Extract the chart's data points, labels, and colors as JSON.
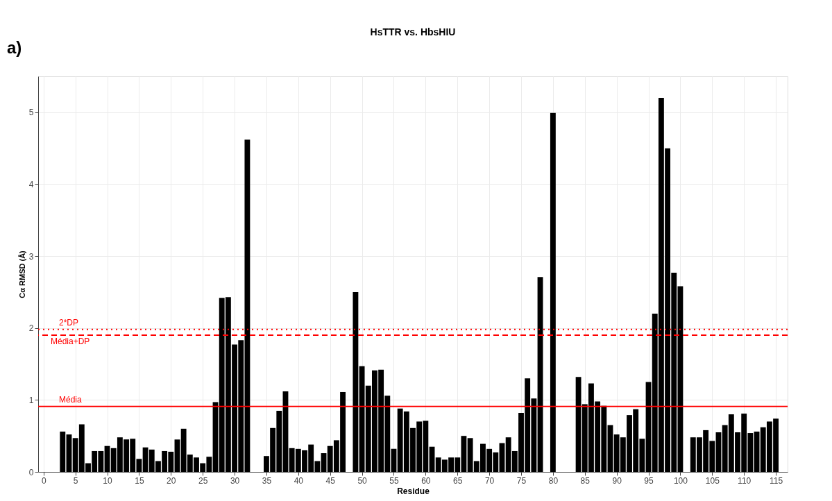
{
  "chart_data": {
    "type": "bar",
    "title": "HsTTR vs. HbsHIU",
    "xlabel": "Residue",
    "ylabel": "Cα RMSD (Å)",
    "annotations": [
      "a)"
    ],
    "x": [
      3,
      4,
      5,
      6,
      7,
      8,
      9,
      10,
      11,
      12,
      13,
      14,
      15,
      16,
      17,
      18,
      19,
      20,
      21,
      22,
      23,
      24,
      25,
      26,
      27,
      28,
      29,
      30,
      31,
      32,
      33,
      34,
      35,
      36,
      37,
      38,
      39,
      40,
      41,
      42,
      43,
      44,
      45,
      46,
      47,
      48,
      49,
      50,
      51,
      52,
      53,
      54,
      55,
      56,
      57,
      58,
      59,
      60,
      61,
      62,
      63,
      64,
      65,
      66,
      67,
      68,
      69,
      70,
      71,
      72,
      73,
      74,
      75,
      76,
      77,
      78,
      79,
      80,
      81,
      82,
      83,
      84,
      85,
      86,
      87,
      88,
      89,
      90,
      91,
      92,
      93,
      94,
      95,
      96,
      97,
      98,
      99,
      100,
      101,
      102,
      103,
      104,
      105,
      106,
      107,
      108,
      109,
      110,
      111,
      112,
      113,
      114,
      115
    ],
    "values": [
      0.56,
      0.52,
      0.47,
      0.66,
      0.12,
      0.29,
      0.29,
      0.36,
      0.33,
      0.48,
      0.45,
      0.46,
      0.18,
      0.34,
      0.31,
      0.15,
      0.29,
      0.28,
      0.45,
      0.6,
      0.24,
      0.2,
      0.12,
      0.21,
      0.97,
      2.42,
      2.43,
      1.77,
      1.83,
      4.62,
      null,
      null,
      0.22,
      0.61,
      0.85,
      1.12,
      0.33,
      0.32,
      0.3,
      0.38,
      0.15,
      0.26,
      0.36,
      0.44,
      1.11,
      null,
      2.5,
      1.47,
      1.2,
      1.41,
      1.42,
      1.06,
      0.32,
      0.88,
      0.84,
      0.61,
      0.7,
      0.71,
      0.35,
      0.2,
      0.17,
      0.2,
      0.2,
      0.5,
      0.47,
      0.15,
      0.39,
      0.32,
      0.27,
      0.4,
      0.48,
      0.29,
      0.82,
      1.3,
      1.02,
      2.71,
      null,
      4.99,
      null,
      null,
      null,
      1.32,
      0.94,
      1.23,
      0.98,
      0.92,
      0.65,
      0.52,
      0.48,
      0.79,
      0.87,
      0.46,
      1.25,
      2.2,
      5.2,
      4.5,
      2.77,
      2.58,
      null,
      0.48,
      0.48,
      0.58,
      0.43,
      0.55,
      0.65,
      0.8,
      0.55,
      0.81,
      0.54,
      0.56,
      0.62,
      0.7,
      0.74
    ],
    "color": "#000000",
    "xlim": [
      -0.3,
      116.3
    ],
    "xticks": [
      0,
      5,
      10,
      15,
      20,
      25,
      30,
      35,
      40,
      45,
      50,
      55,
      60,
      65,
      70,
      75,
      80,
      85,
      90,
      95,
      100,
      105,
      110,
      115
    ],
    "ylim": [
      0,
      5.5
    ],
    "yticks": [
      0,
      1,
      2,
      3,
      4,
      5
    ],
    "grid": true,
    "ref_lines": [
      {
        "axis": "y",
        "value": 0.91,
        "label": "Média",
        "color": "#ff0000",
        "line_style": "solid"
      },
      {
        "axis": "y",
        "value": 1.9,
        "label": "Média+DP",
        "color": "#ff0000",
        "line_style": "dashed"
      },
      {
        "axis": "y",
        "value": 1.98,
        "label": "2*DP",
        "color": "#ff0000",
        "line_style": "dotted"
      }
    ]
  }
}
